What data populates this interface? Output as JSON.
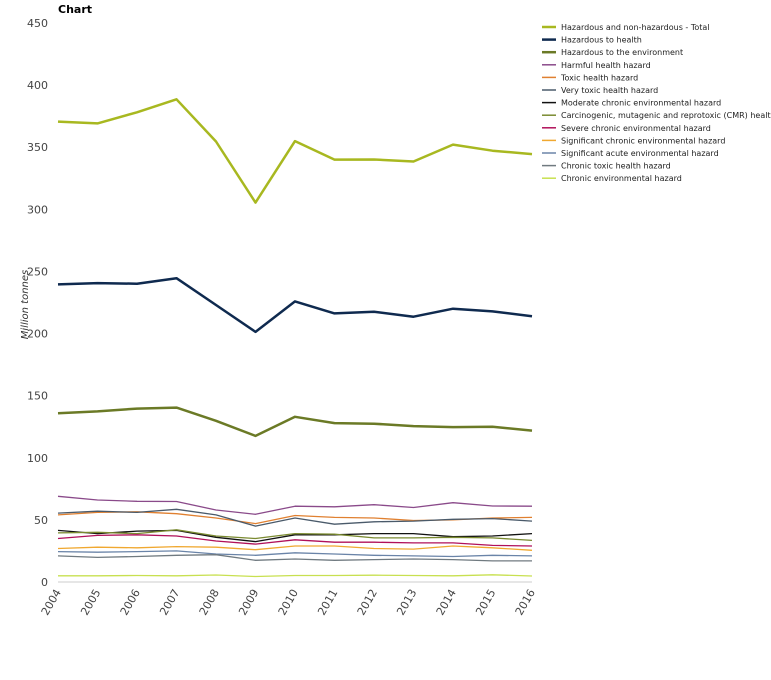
{
  "chart_data": {
    "type": "line",
    "title": "Chart",
    "ylabel": "Million tonnes",
    "xlabel": "",
    "ylim": [
      0,
      450
    ],
    "yticks": [
      0,
      50,
      100,
      150,
      200,
      250,
      300,
      350,
      400,
      450
    ],
    "x": [
      "2004",
      "2005",
      "2006",
      "2007",
      "2008",
      "2009",
      "2010",
      "2011",
      "2012",
      "2013",
      "2014",
      "2015",
      "2016"
    ],
    "grid": false,
    "legend_position": "top-right",
    "series": [
      {
        "name": "Hazardous and non-hazardous - Total",
        "color": "#a8b820",
        "width": 2.5,
        "values": [
          370.6,
          369.2,
          378.1,
          388.6,
          354.6,
          305.4,
          354.9,
          340.0,
          340.1,
          338.5,
          352.1,
          347.2,
          344.5
        ]
      },
      {
        "name": "Hazardous to health",
        "color": "#0f2a4f",
        "width": 2.5,
        "values": [
          239.6,
          240.6,
          240.1,
          244.6,
          223.0,
          201.3,
          225.9,
          216.2,
          217.5,
          213.6,
          220.0,
          217.8,
          214.0
        ]
      },
      {
        "name": "Hazardous to the environment",
        "color": "#6b7a26",
        "width": 2.5,
        "values": [
          135.8,
          137.3,
          139.6,
          140.4,
          129.8,
          117.6,
          133.0,
          127.9,
          127.4,
          125.5,
          124.7,
          124.9,
          121.9
        ]
      },
      {
        "name": "Harmful health hazard",
        "color": "#8a4a8a",
        "width": 1.3,
        "values": [
          69.0,
          66.0,
          65.0,
          64.8,
          58.0,
          54.5,
          61.0,
          60.5,
          62.2,
          60.0,
          63.8,
          61.2,
          61.0
        ]
      },
      {
        "name": "Toxic health hazard",
        "color": "#e08030",
        "width": 1.3,
        "values": [
          54.0,
          56.0,
          56.5,
          55.0,
          51.5,
          47.0,
          53.5,
          52.0,
          51.5,
          49.5,
          50.0,
          51.5,
          52.0
        ]
      },
      {
        "name": "Very toxic health hazard",
        "color": "#4a5a6a",
        "width": 1.3,
        "values": [
          55.5,
          57.0,
          56.0,
          58.5,
          54.0,
          45.0,
          51.5,
          46.5,
          48.5,
          49.0,
          50.5,
          51.0,
          49.0
        ]
      },
      {
        "name": "Moderate chronic environmental hazard",
        "color": "#111111",
        "width": 1.3,
        "values": [
          41.5,
          39.0,
          41.0,
          41.5,
          36.0,
          32.5,
          38.0,
          38.0,
          39.0,
          39.0,
          36.5,
          37.0,
          39.0
        ]
      },
      {
        "name": "Carcinogenic, mutagenic and reprotoxic (CMR) health hazard",
        "color": "#7a8a30",
        "width": 1.3,
        "values": [
          39.5,
          40.0,
          39.0,
          42.0,
          37.0,
          35.0,
          39.0,
          38.5,
          35.5,
          35.5,
          36.0,
          35.5,
          33.5
        ]
      },
      {
        "name": "Severe chronic environmental hazard",
        "color": "#b0105a",
        "width": 1.3,
        "values": [
          35.0,
          37.5,
          38.0,
          37.0,
          33.0,
          30.5,
          34.0,
          32.0,
          32.0,
          31.5,
          31.5,
          29.5,
          29.0
        ]
      },
      {
        "name": "Significant chronic environmental hazard",
        "color": "#f0a830",
        "width": 1.3,
        "values": [
          27.0,
          28.0,
          27.5,
          28.5,
          28.0,
          26.0,
          29.0,
          29.0,
          27.0,
          26.5,
          29.0,
          27.5,
          25.5
        ]
      },
      {
        "name": "Significant acute environmental hazard",
        "color": "#6a84a8",
        "width": 1.3,
        "values": [
          24.5,
          24.0,
          24.5,
          25.0,
          22.5,
          21.5,
          23.5,
          22.5,
          21.5,
          21.0,
          20.5,
          21.5,
          21.0
        ]
      },
      {
        "name": "Chronic toxic health hazard",
        "color": "#707a80",
        "width": 1.3,
        "values": [
          21.0,
          19.8,
          20.5,
          21.5,
          22.0,
          17.5,
          18.5,
          17.5,
          18.0,
          18.5,
          18.0,
          17.0,
          17.0
        ]
      },
      {
        "name": "Chronic environmental hazard",
        "color": "#c8e050",
        "width": 1.3,
        "values": [
          5.0,
          5.0,
          5.2,
          5.0,
          5.6,
          4.4,
          5.2,
          5.2,
          5.5,
          5.2,
          5.0,
          5.8,
          4.8
        ]
      }
    ]
  }
}
